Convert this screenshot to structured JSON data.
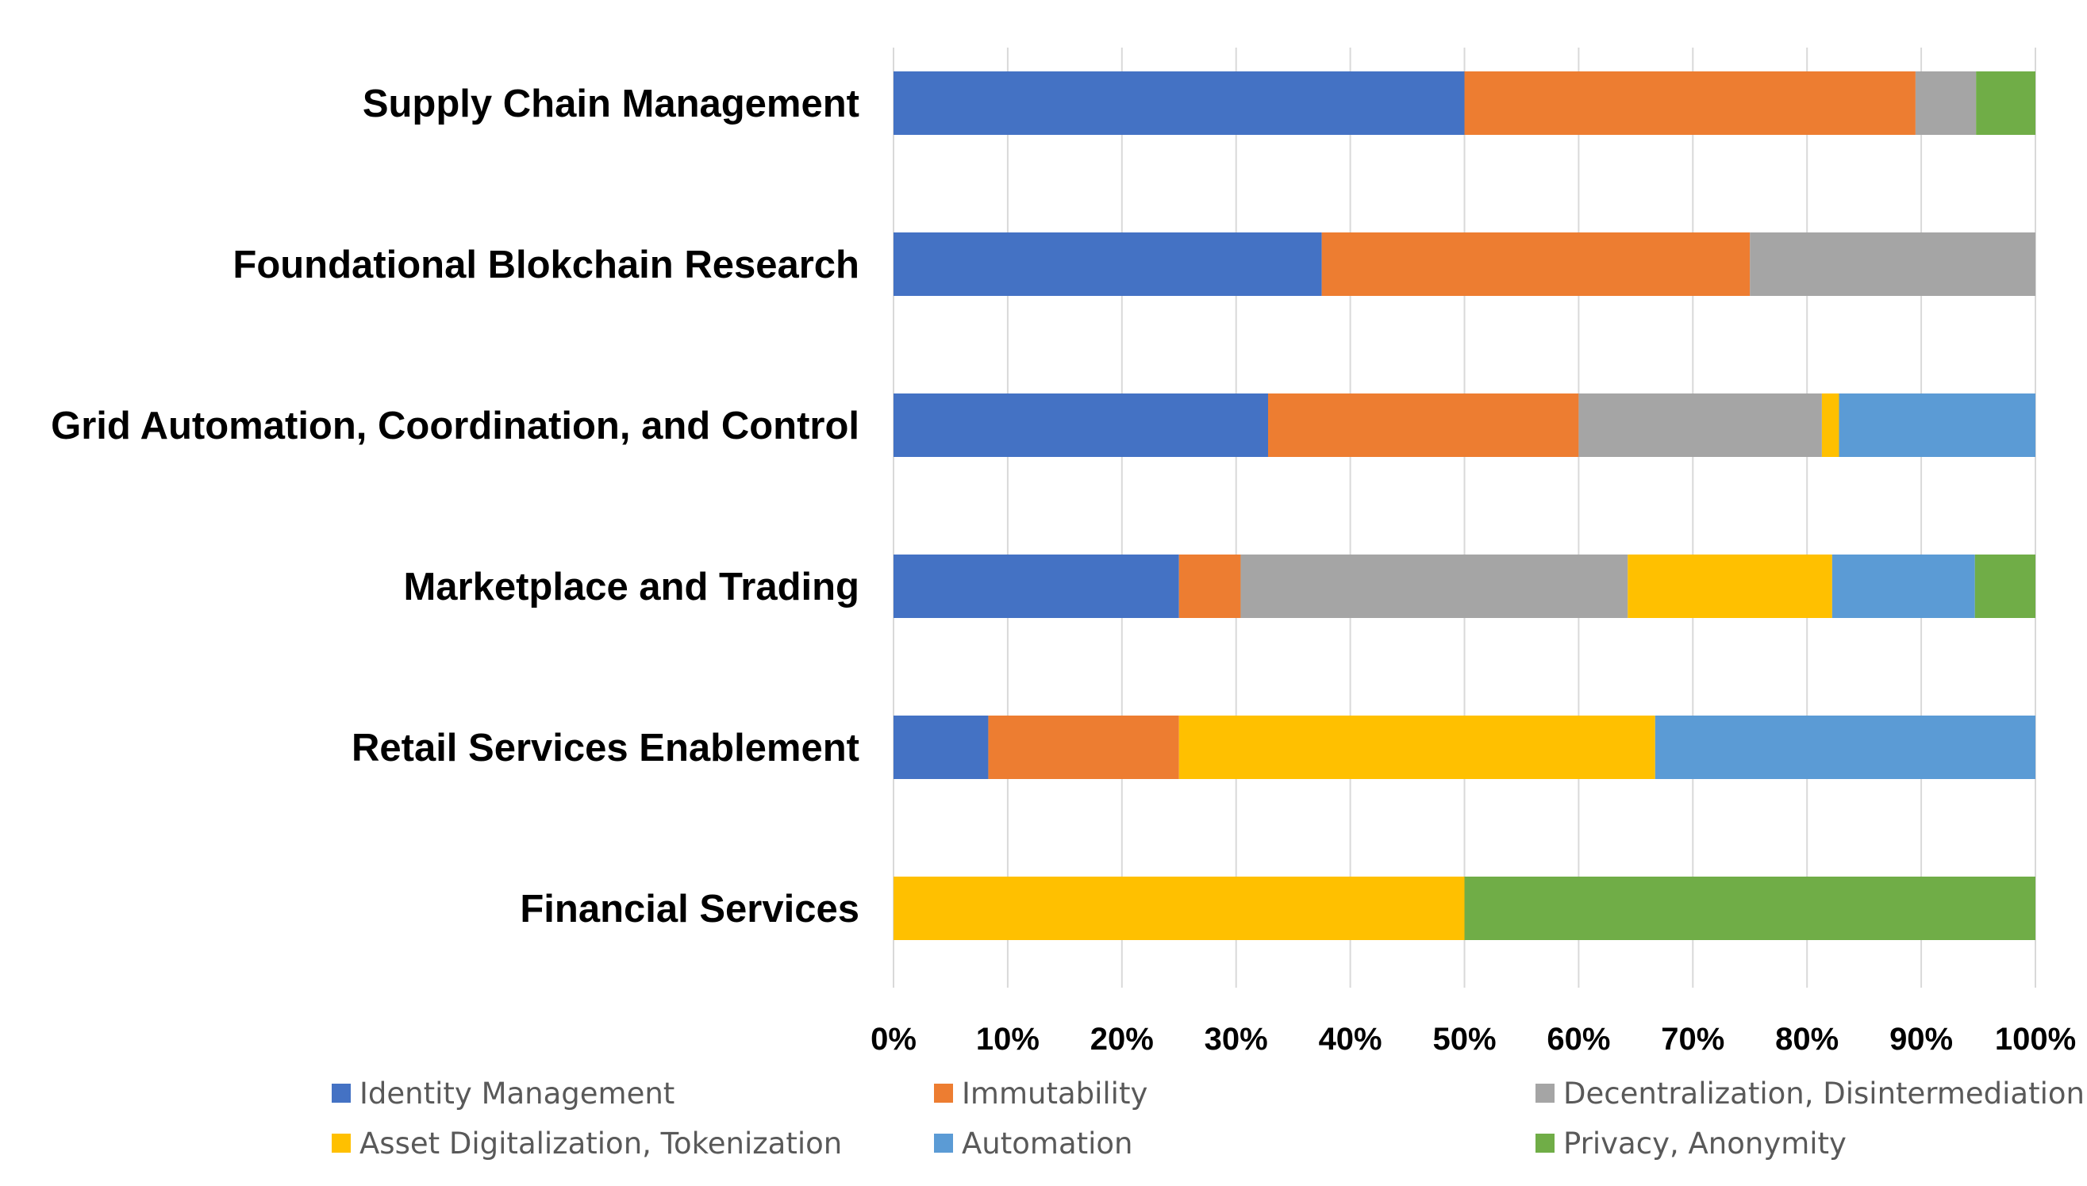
{
  "chart_data": {
    "type": "bar",
    "orientation": "horizontal",
    "stacked": "percent",
    "title": "",
    "xlabel": "",
    "ylabel": "",
    "xlim": [
      0,
      100
    ],
    "grid": true,
    "legend_position": "bottom",
    "categories": [
      "Supply Chain Management",
      "Foundational Blokchain Research",
      "Grid Automation, Coordination, and Control",
      "Marketplace and Trading",
      "Retail Services Enablement",
      "Financial Services"
    ],
    "x_ticks": [
      "0%",
      "10%",
      "20%",
      "30%",
      "40%",
      "50%",
      "60%",
      "70%",
      "80%",
      "90%",
      "100%"
    ],
    "series": [
      {
        "name": "Identity Management",
        "color": "#4472C4",
        "values": [
          50.0,
          37.5,
          32.8,
          25.0,
          8.3,
          0
        ]
      },
      {
        "name": "Immutability",
        "color": "#ED7D31",
        "values": [
          39.5,
          37.5,
          27.2,
          5.4,
          16.7,
          0
        ]
      },
      {
        "name": "Decentralization, Disintermediation",
        "color": "#A5A5A5",
        "values": [
          5.3,
          25.0,
          21.3,
          33.9,
          0,
          0
        ]
      },
      {
        "name": "Asset Digitalization, Tokenization",
        "color": "#FFC000",
        "values": [
          0,
          0,
          1.5,
          17.9,
          41.7,
          50.0
        ]
      },
      {
        "name": "Automation",
        "color": "#5B9BD5",
        "values": [
          0,
          0,
          17.2,
          12.5,
          33.3,
          0
        ]
      },
      {
        "name": "Privacy, Anonymity",
        "color": "#70AD47",
        "values": [
          5.2,
          0,
          0,
          5.3,
          0,
          50.0
        ]
      }
    ]
  }
}
